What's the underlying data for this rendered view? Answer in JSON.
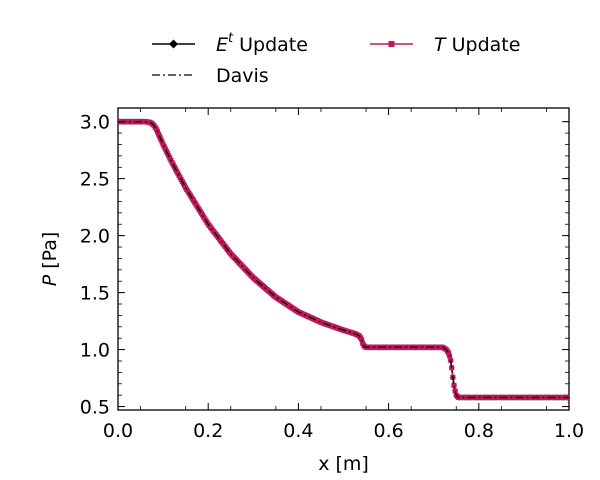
{
  "chart_data": {
    "type": "line",
    "xlabel": "x [m]",
    "ylabel_symbol": "P",
    "ylabel_unit": "[Pa]",
    "xlim": [
      0.0,
      1.0
    ],
    "ylim": [
      0.47,
      3.12
    ],
    "grid": false,
    "legend_placement": "above plot",
    "x_ticks": [
      "0.0",
      "0.2",
      "0.4",
      "0.6",
      "0.8",
      "1.0"
    ],
    "y_ticks": [
      "0.5",
      "1.0",
      "1.5",
      "2.0",
      "2.5",
      "3.0"
    ],
    "series": [
      {
        "name_symbol": "E",
        "name_superscript": "t",
        "name_suffix": "Update",
        "color": "#000000",
        "line_style": "solid",
        "marker": "diamond",
        "x": [
          0.0,
          0.06,
          0.07,
          0.075,
          0.08,
          0.085,
          0.09,
          0.1,
          0.12,
          0.15,
          0.2,
          0.25,
          0.3,
          0.35,
          0.4,
          0.45,
          0.5,
          0.525,
          0.535,
          0.54,
          0.543,
          0.546,
          0.55,
          0.6,
          0.65,
          0.7,
          0.72,
          0.728,
          0.733,
          0.737,
          0.74,
          0.743,
          0.746,
          0.75,
          0.755,
          0.8,
          0.9,
          1.0
        ],
        "y": [
          3.0,
          3.0,
          2.995,
          2.985,
          2.965,
          2.935,
          2.89,
          2.8,
          2.64,
          2.42,
          2.1,
          1.84,
          1.63,
          1.46,
          1.33,
          1.24,
          1.17,
          1.14,
          1.12,
          1.09,
          1.05,
          1.03,
          1.02,
          1.02,
          1.02,
          1.02,
          1.02,
          1.0,
          0.97,
          0.92,
          0.84,
          0.74,
          0.66,
          0.6,
          0.58,
          0.58,
          0.58,
          0.58
        ]
      },
      {
        "name": "Davis",
        "color": "#000000",
        "line_style": "dashdot",
        "marker": "none",
        "x": [
          0.0,
          0.06,
          0.07,
          0.075,
          0.08,
          0.085,
          0.09,
          0.1,
          0.12,
          0.15,
          0.2,
          0.25,
          0.3,
          0.35,
          0.4,
          0.45,
          0.5,
          0.525,
          0.535,
          0.54,
          0.543,
          0.546,
          0.55,
          0.6,
          0.65,
          0.7,
          0.72,
          0.728,
          0.733,
          0.737,
          0.74,
          0.743,
          0.746,
          0.75,
          0.755,
          0.8,
          0.9,
          1.0
        ],
        "y": [
          3.0,
          3.0,
          2.995,
          2.985,
          2.965,
          2.935,
          2.89,
          2.8,
          2.64,
          2.42,
          2.1,
          1.84,
          1.63,
          1.46,
          1.33,
          1.24,
          1.17,
          1.14,
          1.12,
          1.09,
          1.05,
          1.03,
          1.02,
          1.02,
          1.02,
          1.02,
          1.02,
          1.0,
          0.97,
          0.92,
          0.84,
          0.74,
          0.66,
          0.6,
          0.58,
          0.58,
          0.58,
          0.58
        ]
      },
      {
        "name_symbol": "T",
        "name_suffix": "Update",
        "color": "#c2185b",
        "line_style": "solid",
        "marker": "square",
        "x": [
          0.0,
          0.06,
          0.07,
          0.075,
          0.08,
          0.085,
          0.09,
          0.1,
          0.12,
          0.15,
          0.2,
          0.25,
          0.3,
          0.35,
          0.4,
          0.45,
          0.5,
          0.525,
          0.535,
          0.54,
          0.543,
          0.546,
          0.55,
          0.6,
          0.65,
          0.7,
          0.72,
          0.728,
          0.733,
          0.737,
          0.74,
          0.743,
          0.746,
          0.75,
          0.755,
          0.8,
          0.9,
          1.0
        ],
        "y": [
          3.0,
          3.0,
          2.995,
          2.985,
          2.965,
          2.935,
          2.89,
          2.8,
          2.64,
          2.42,
          2.1,
          1.84,
          1.63,
          1.46,
          1.33,
          1.24,
          1.17,
          1.14,
          1.12,
          1.09,
          1.05,
          1.03,
          1.02,
          1.02,
          1.02,
          1.02,
          1.02,
          1.0,
          0.97,
          0.92,
          0.84,
          0.74,
          0.66,
          0.6,
          0.58,
          0.58,
          0.58,
          0.58
        ]
      }
    ]
  }
}
